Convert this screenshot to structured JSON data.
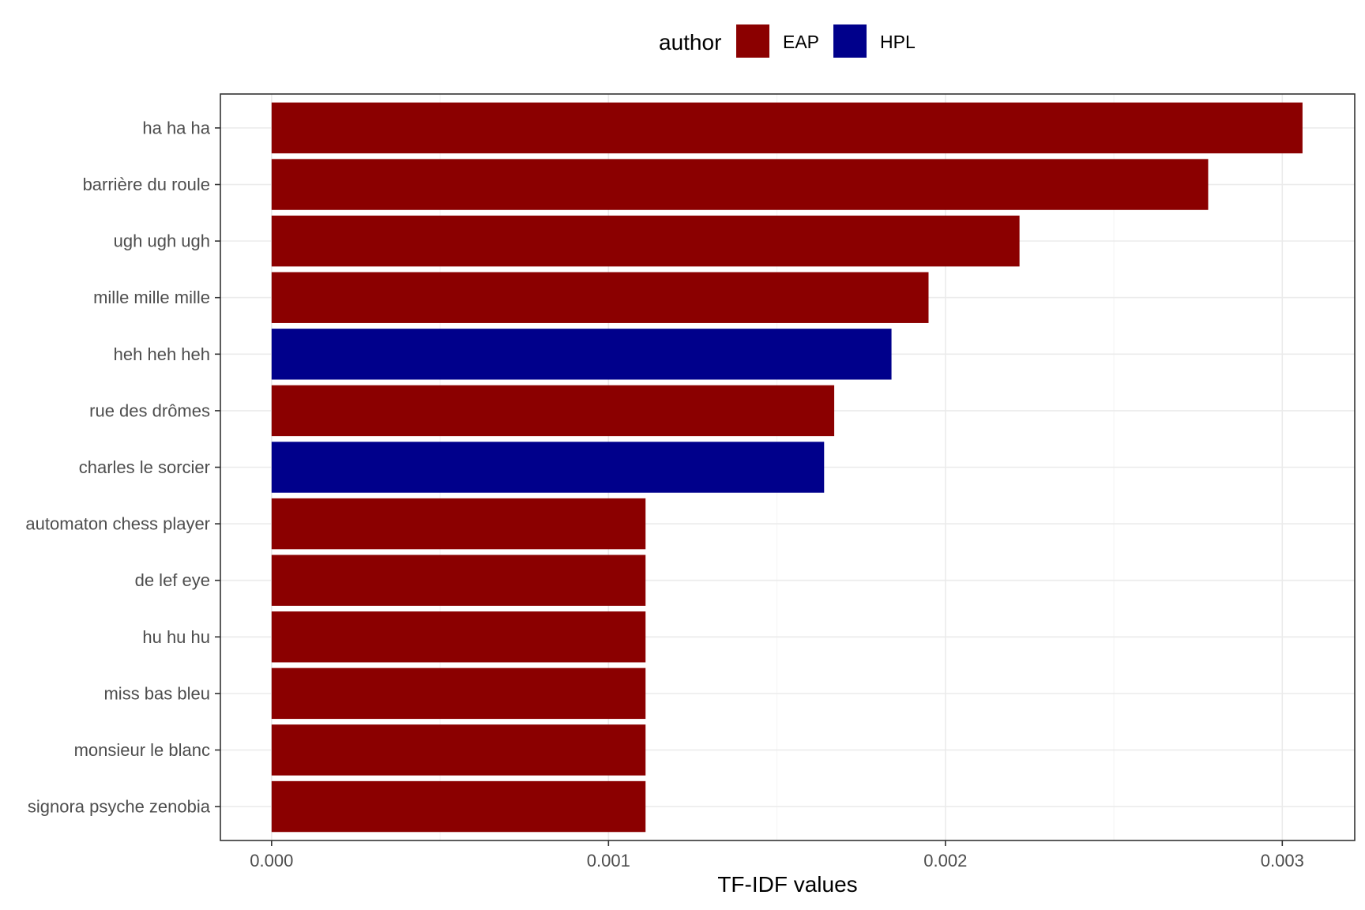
{
  "chart_data": {
    "type": "bar",
    "orientation": "horizontal",
    "title": "",
    "xlabel": "TF-IDF values",
    "ylabel": "",
    "xlim": [
      -0.000152,
      0.003215
    ],
    "xticks": [
      0.0,
      0.001,
      0.002,
      0.003
    ],
    "xtick_labels": [
      "0.000",
      "0.001",
      "0.002",
      "0.003"
    ],
    "grid": true,
    "legend": {
      "title": "author",
      "position": "top",
      "entries": [
        {
          "name": "EAP",
          "color": "#8b0000"
        },
        {
          "name": "HPL",
          "color": "#00008b"
        }
      ]
    },
    "categories": [
      "ha ha ha",
      "barrière du roule",
      "ugh ugh ugh",
      "mille mille mille",
      "heh heh heh",
      "rue des drômes",
      "charles le sorcier",
      "automaton chess player",
      "de lef eye",
      "hu hu hu",
      "miss bas bleu",
      "monsieur le blanc",
      "signora psyche zenobia"
    ],
    "values": [
      0.00306,
      0.00278,
      0.00222,
      0.00195,
      0.00184,
      0.00167,
      0.00164,
      0.00111,
      0.00111,
      0.00111,
      0.00111,
      0.00111,
      0.00111
    ],
    "authors": [
      "EAP",
      "EAP",
      "EAP",
      "EAP",
      "HPL",
      "EAP",
      "HPL",
      "EAP",
      "EAP",
      "EAP",
      "EAP",
      "EAP",
      "EAP"
    ]
  }
}
